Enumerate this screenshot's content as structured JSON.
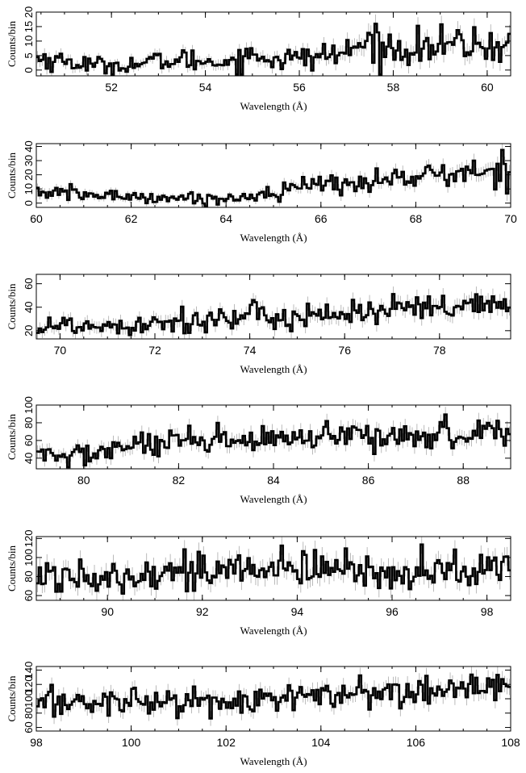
{
  "colors": {
    "spectrum": "#000000",
    "error_bars": "#aaaaaa",
    "axes": "#000000",
    "background": "#ffffff"
  },
  "chart_data": [
    {
      "type": "line",
      "xlabel": "Wavelength (Å)",
      "ylabel": "Counts/bin",
      "xlim": [
        50.4,
        60.5
      ],
      "ylim": [
        -2,
        20
      ],
      "xticks": [
        "52",
        "54",
        "56",
        "58",
        "60"
      ],
      "yticks": [
        "0",
        "5",
        "10",
        "15",
        "20"
      ],
      "x": [
        50.5,
        51.0,
        51.5,
        52.0,
        52.5,
        53.0,
        53.5,
        54.0,
        54.5,
        55.0,
        55.5,
        56.0,
        56.5,
        57.0,
        57.5,
        58.0,
        58.5,
        59.0,
        59.5,
        60.0,
        60.5
      ],
      "y": [
        4,
        3,
        2,
        1.5,
        2,
        3,
        3.5,
        3,
        3,
        5,
        4,
        4,
        5,
        6,
        10,
        7,
        8,
        8,
        9,
        8,
        9
      ]
    },
    {
      "type": "line",
      "xlabel": "Wavelength (Å)",
      "ylabel": "Counts/bin",
      "xlim": [
        60,
        70
      ],
      "ylim": [
        -3,
        42
      ],
      "xticks": [
        "60",
        "62",
        "64",
        "66",
        "68",
        "70"
      ],
      "yticks": [
        "0",
        "10",
        "20",
        "30",
        "40"
      ],
      "x": [
        60.0,
        60.5,
        61.0,
        61.5,
        62.0,
        62.5,
        63.0,
        63.5,
        64.0,
        64.5,
        65.0,
        65.5,
        66.0,
        66.5,
        67.0,
        67.5,
        68.0,
        68.5,
        69.0,
        69.5,
        70.0
      ],
      "y": [
        8,
        7,
        6,
        5,
        5,
        4,
        4,
        3,
        3,
        5,
        8,
        11,
        13,
        14,
        15,
        17,
        19,
        20,
        21,
        22,
        24
      ]
    },
    {
      "type": "line",
      "xlabel": "Wavelength (Å)",
      "ylabel": "Counts/bin",
      "xlim": [
        69.5,
        79.5
      ],
      "ylim": [
        13,
        68
      ],
      "xticks": [
        "70",
        "72",
        "74",
        "76",
        "78"
      ],
      "yticks": [
        "20",
        "40",
        "60"
      ],
      "x": [
        69.5,
        70.0,
        70.5,
        71.0,
        71.5,
        72.0,
        72.5,
        73.0,
        73.5,
        74.0,
        74.5,
        75.0,
        75.5,
        76.0,
        76.5,
        77.0,
        77.5,
        78.0,
        78.5,
        79.0,
        79.5
      ],
      "y": [
        24,
        24,
        25,
        24,
        26,
        28,
        29,
        29,
        30,
        31,
        32,
        33,
        34,
        35,
        36,
        37,
        38,
        38,
        39,
        40,
        41
      ]
    },
    {
      "type": "line",
      "xlabel": "Wavelength (Å)",
      "ylabel": "Counts/bin",
      "xlim": [
        79,
        89
      ],
      "ylim": [
        28,
        100
      ],
      "xticks": [
        "80",
        "82",
        "84",
        "86",
        "88"
      ],
      "yticks": [
        "40",
        "60",
        "80",
        "100"
      ],
      "x": [
        79.0,
        79.5,
        80.0,
        80.5,
        81.0,
        81.5,
        82.0,
        82.5,
        83.0,
        83.5,
        84.0,
        84.5,
        85.0,
        85.5,
        86.0,
        86.5,
        87.0,
        87.5,
        88.0,
        88.5,
        89.0
      ],
      "y": [
        44,
        42,
        43,
        50,
        54,
        55,
        56,
        57,
        58,
        59,
        60,
        61,
        62,
        63,
        64,
        65,
        66,
        67,
        68,
        70,
        71
      ]
    },
    {
      "type": "line",
      "xlabel": "Wavelength (Å)",
      "ylabel": "Counts/bin",
      "xlim": [
        88.5,
        98.5
      ],
      "ylim": [
        55,
        122
      ],
      "xticks": [
        "90",
        "92",
        "94",
        "96",
        "98"
      ],
      "yticks": [
        "60",
        "80",
        "100",
        "120"
      ],
      "x": [
        88.5,
        89.0,
        89.5,
        90.0,
        90.5,
        91.0,
        91.5,
        92.0,
        92.5,
        93.0,
        93.5,
        94.0,
        94.5,
        95.0,
        95.5,
        96.0,
        96.5,
        97.0,
        97.5,
        98.0,
        98.5
      ],
      "y": [
        80,
        80,
        82,
        83,
        84,
        85,
        85,
        86,
        86,
        87,
        87,
        87,
        88,
        86,
        85,
        86,
        85,
        86,
        87,
        88,
        88
      ]
    },
    {
      "type": "line",
      "xlabel": "Wavelength (Å)",
      "ylabel": "Counts/bin",
      "xlim": [
        98,
        108
      ],
      "ylim": [
        55,
        145
      ],
      "xticks": [
        "98",
        "100",
        "102",
        "104",
        "106",
        "108"
      ],
      "yticks": [
        "60",
        "80",
        "100",
        "120",
        "140"
      ],
      "x": [
        98.0,
        98.5,
        99.0,
        99.5,
        100.0,
        100.5,
        101.0,
        101.5,
        102.0,
        102.5,
        103.0,
        103.5,
        104.0,
        104.5,
        105.0,
        105.5,
        106.0,
        106.5,
        107.0,
        107.5,
        108.0
      ],
      "y": [
        92,
        95,
        95,
        96,
        98,
        97,
        95,
        96,
        97,
        98,
        100,
        102,
        104,
        105,
        106,
        108,
        110,
        112,
        114,
        116,
        117
      ]
    }
  ]
}
